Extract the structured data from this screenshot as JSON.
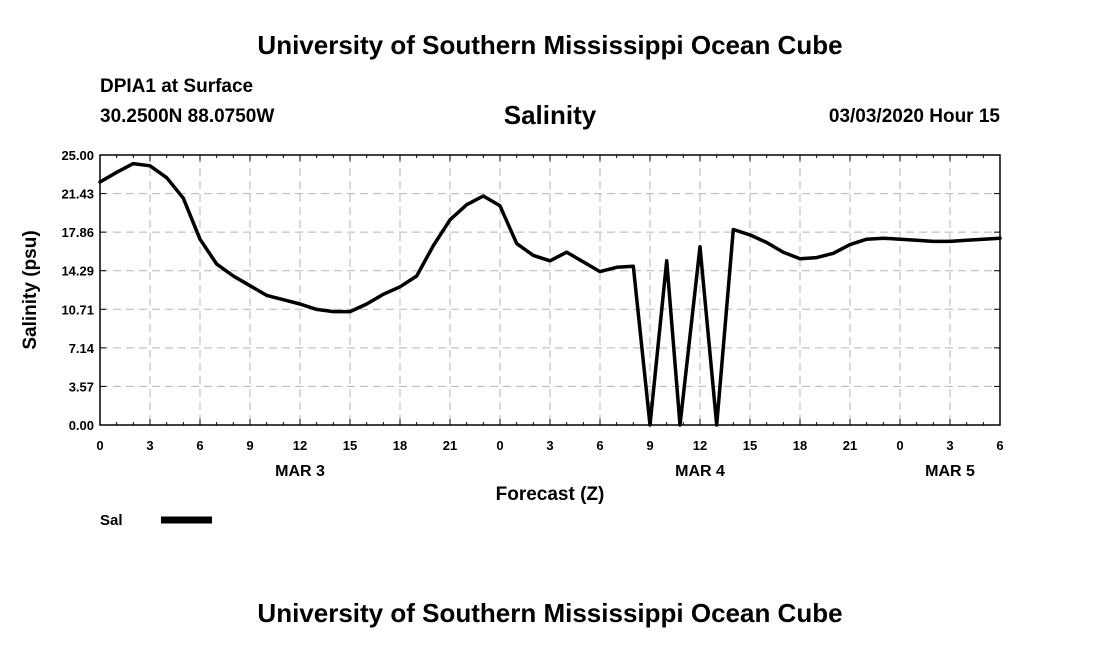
{
  "header": {
    "title": "University of Southern Mississippi Ocean Cube",
    "station": "DPIA1 at Surface",
    "coords": "30.2500N 88.0750W",
    "variable": "Salinity",
    "datetime": "03/03/2020 Hour 15"
  },
  "footer": {
    "title": "University of Southern Mississippi Ocean Cube"
  },
  "chart_data": {
    "type": "line",
    "xlabel": "Forecast (Z)",
    "ylabel": "Salinity (psu)",
    "ylim": [
      0,
      25
    ],
    "xlim": [
      0,
      54
    ],
    "yticks": [
      "0.00",
      "3.57",
      "7.14",
      "10.71",
      "14.29",
      "17.86",
      "21.43",
      "25.00"
    ],
    "xticks": [
      "0",
      "3",
      "6",
      "9",
      "12",
      "15",
      "18",
      "21",
      "0",
      "3",
      "6",
      "9",
      "12",
      "15",
      "18",
      "21",
      "0",
      "3",
      "6"
    ],
    "day_labels": [
      {
        "label": "MAR 3",
        "at_hour": 12
      },
      {
        "label": "MAR 4",
        "at_hour": 36
      },
      {
        "label": "MAR 5",
        "at_hour": 51
      }
    ],
    "grid": true,
    "legend": "bottom-left",
    "series": [
      {
        "name": "Sal",
        "color": "#000000",
        "x": [
          0,
          1,
          2,
          3,
          4,
          5,
          6,
          7,
          8,
          9,
          10,
          11,
          12,
          13,
          14,
          15,
          16,
          17,
          18,
          19,
          20,
          21,
          22,
          23,
          24,
          25,
          26,
          27,
          28,
          29,
          30,
          31,
          32,
          33,
          34,
          34.8,
          36,
          37,
          38,
          39,
          40,
          41,
          42,
          43,
          44,
          45,
          46,
          47,
          48,
          49,
          50,
          51,
          52,
          53,
          54
        ],
        "values": [
          22.5,
          23.4,
          24.2,
          24.0,
          22.9,
          21.0,
          17.2,
          14.9,
          13.8,
          12.9,
          12.0,
          11.6,
          11.2,
          10.7,
          10.5,
          10.5,
          11.2,
          12.1,
          12.8,
          13.8,
          16.6,
          19.0,
          20.4,
          21.2,
          20.3,
          16.8,
          15.7,
          15.2,
          16.0,
          15.1,
          14.2,
          14.6,
          14.7,
          0.0,
          15.2,
          0.0,
          16.5,
          0.0,
          18.1,
          17.6,
          16.9,
          16.0,
          15.4,
          15.5,
          15.9,
          16.7,
          17.2,
          17.3,
          17.2,
          17.1,
          17.0,
          17.0,
          17.1,
          17.2,
          17.3
        ]
      }
    ]
  }
}
